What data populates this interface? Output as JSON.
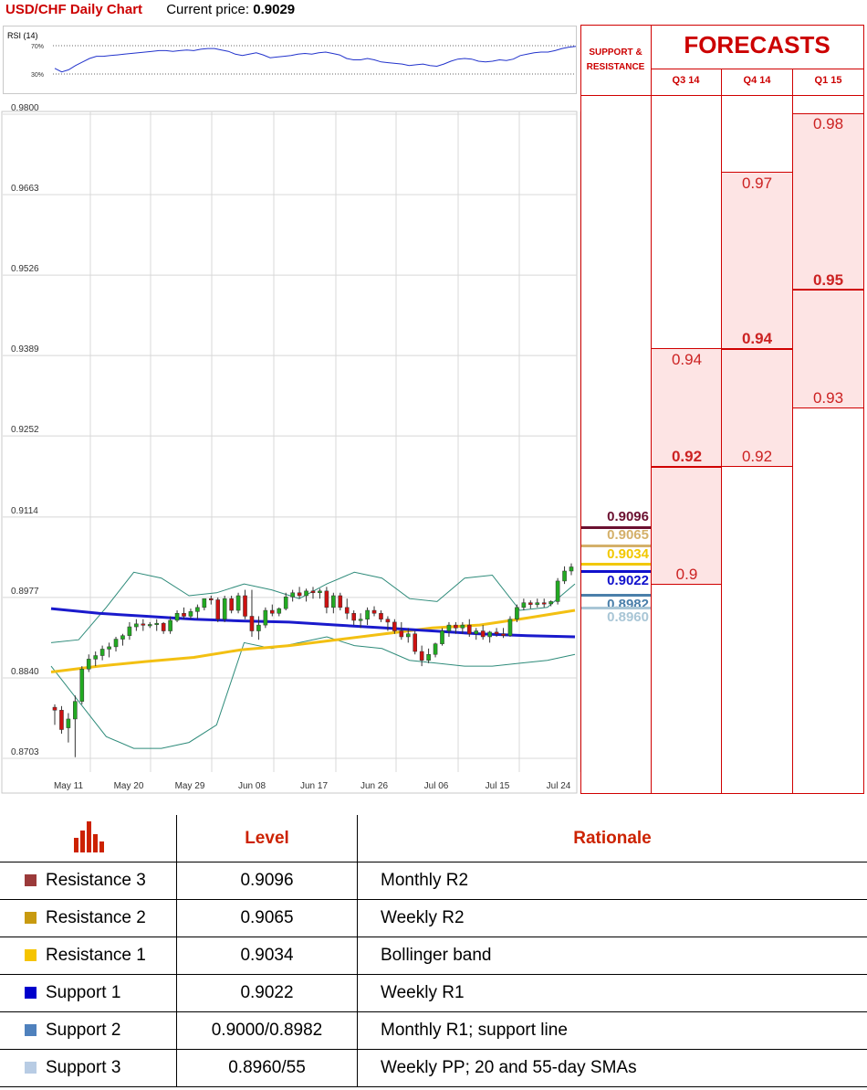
{
  "header": {
    "title": "USD/CHF Daily Chart",
    "price_label": "Current price:",
    "price_value": "0.9029"
  },
  "rsi": {
    "label": "RSI (14)",
    "tick_70": "70%",
    "tick_30": "30%",
    "values": [
      38,
      33,
      36,
      42,
      47,
      52,
      55,
      55,
      56,
      57,
      58,
      59,
      60,
      61,
      62,
      63,
      63,
      62,
      63,
      64,
      63,
      65,
      66,
      66,
      64,
      62,
      58,
      56,
      58,
      60,
      57,
      53,
      54,
      55,
      56,
      58,
      59,
      58,
      60,
      61,
      59,
      57,
      52,
      50,
      50,
      52,
      50,
      47,
      46,
      45,
      44,
      42,
      43,
      44,
      42,
      41,
      44,
      48,
      51,
      52,
      51,
      48,
      47,
      48,
      50,
      49,
      51,
      56,
      58,
      60,
      61,
      61,
      63,
      66,
      68,
      69
    ]
  },
  "chart_data": {
    "type": "candlestick",
    "title": "USD/CHF Daily Chart",
    "y_ticks": [
      "0.9800",
      "0.9663",
      "0.9526",
      "0.9389",
      "0.9252",
      "0.9114",
      "0.8977",
      "0.8840",
      "0.8703"
    ],
    "ylim": [
      0.8703,
      0.98
    ],
    "x_ticks": [
      "May 11",
      "May 20",
      "May 29",
      "Jun 08",
      "Jun 17",
      "Jun 26",
      "Jul 06",
      "Jul 15",
      "Jul 24"
    ],
    "candles": [
      [
        0.879,
        0.8795,
        0.876,
        0.8785
      ],
      [
        0.8785,
        0.8792,
        0.8745,
        0.8752
      ],
      [
        0.8755,
        0.878,
        0.873,
        0.877
      ],
      [
        0.877,
        0.881,
        0.8705,
        0.88
      ],
      [
        0.88,
        0.886,
        0.8795,
        0.8855
      ],
      [
        0.8855,
        0.888,
        0.885,
        0.8872
      ],
      [
        0.8872,
        0.8885,
        0.886,
        0.8878
      ],
      [
        0.8878,
        0.8895,
        0.887,
        0.8889
      ],
      [
        0.8889,
        0.89,
        0.8875,
        0.8893
      ],
      [
        0.8893,
        0.891,
        0.8885,
        0.8906
      ],
      [
        0.8906,
        0.8915,
        0.8895,
        0.8912
      ],
      [
        0.8912,
        0.8935,
        0.8905,
        0.8927
      ],
      [
        0.8927,
        0.894,
        0.892,
        0.8932
      ],
      [
        0.8932,
        0.894,
        0.892,
        0.893
      ],
      [
        0.893,
        0.8935,
        0.8925,
        0.8931
      ],
      [
        0.8931,
        0.894,
        0.892,
        0.8933
      ],
      [
        0.8933,
        0.8935,
        0.8915,
        0.892
      ],
      [
        0.892,
        0.8945,
        0.8915,
        0.8938
      ],
      [
        0.8938,
        0.8955,
        0.8935,
        0.895
      ],
      [
        0.895,
        0.896,
        0.894,
        0.8945
      ],
      [
        0.8945,
        0.8958,
        0.894,
        0.8953
      ],
      [
        0.8953,
        0.8965,
        0.894,
        0.896
      ],
      [
        0.896,
        0.897,
        0.8955,
        0.8975
      ],
      [
        0.8975,
        0.898,
        0.8965,
        0.8973
      ],
      [
        0.8973,
        0.8977,
        0.8935,
        0.894
      ],
      [
        0.894,
        0.898,
        0.8935,
        0.8975
      ],
      [
        0.8975,
        0.898,
        0.895,
        0.8955
      ],
      [
        0.8955,
        0.8985,
        0.895,
        0.898
      ],
      [
        0.898,
        0.899,
        0.894,
        0.8945
      ],
      [
        0.8945,
        0.899,
        0.891,
        0.892
      ],
      [
        0.892,
        0.8945,
        0.8905,
        0.893
      ],
      [
        0.893,
        0.896,
        0.8925,
        0.8955
      ],
      [
        0.8955,
        0.8965,
        0.8945,
        0.895
      ],
      [
        0.895,
        0.896,
        0.8945,
        0.8958
      ],
      [
        0.8958,
        0.8985,
        0.8955,
        0.8978
      ],
      [
        0.8978,
        0.899,
        0.897,
        0.8985
      ],
      [
        0.8985,
        0.8995,
        0.8975,
        0.898
      ],
      [
        0.898,
        0.8992,
        0.897,
        0.8988
      ],
      [
        0.8988,
        0.8995,
        0.8975,
        0.8985
      ],
      [
        0.8985,
        0.8992,
        0.8975,
        0.8988
      ],
      [
        0.8988,
        0.8995,
        0.895,
        0.896
      ],
      [
        0.896,
        0.8985,
        0.895,
        0.898
      ],
      [
        0.898,
        0.8985,
        0.8955,
        0.896
      ],
      [
        0.896,
        0.8975,
        0.894,
        0.895
      ],
      [
        0.895,
        0.8955,
        0.893,
        0.8938
      ],
      [
        0.8938,
        0.895,
        0.8925,
        0.894
      ],
      [
        0.894,
        0.896,
        0.893,
        0.8955
      ],
      [
        0.8955,
        0.8962,
        0.8945,
        0.895
      ],
      [
        0.895,
        0.8955,
        0.8935,
        0.894
      ],
      [
        0.894,
        0.8945,
        0.892,
        0.8935
      ],
      [
        0.8935,
        0.894,
        0.8915,
        0.892
      ],
      [
        0.892,
        0.8935,
        0.8905,
        0.891
      ],
      [
        0.891,
        0.8925,
        0.89,
        0.8915
      ],
      [
        0.8915,
        0.892,
        0.888,
        0.8885
      ],
      [
        0.8885,
        0.8895,
        0.886,
        0.887
      ],
      [
        0.887,
        0.889,
        0.8865,
        0.888
      ],
      [
        0.888,
        0.89,
        0.8875,
        0.8898
      ],
      [
        0.8898,
        0.8925,
        0.8895,
        0.892
      ],
      [
        0.892,
        0.8935,
        0.891,
        0.893
      ],
      [
        0.893,
        0.8935,
        0.8915,
        0.8925
      ],
      [
        0.8925,
        0.8935,
        0.8915,
        0.893
      ],
      [
        0.893,
        0.894,
        0.891,
        0.8915
      ],
      [
        0.8915,
        0.8925,
        0.8905,
        0.892
      ],
      [
        0.892,
        0.893,
        0.8905,
        0.891
      ],
      [
        0.891,
        0.892,
        0.89,
        0.8918
      ],
      [
        0.8918,
        0.8925,
        0.891,
        0.8915
      ],
      [
        0.8915,
        0.8925,
        0.8908,
        0.8912
      ],
      [
        0.8912,
        0.8945,
        0.891,
        0.894
      ],
      [
        0.894,
        0.8965,
        0.8935,
        0.896
      ],
      [
        0.896,
        0.8975,
        0.8955,
        0.8968
      ],
      [
        0.8968,
        0.8972,
        0.8958,
        0.8965
      ],
      [
        0.8965,
        0.8975,
        0.896,
        0.8968
      ],
      [
        0.8968,
        0.8975,
        0.896,
        0.8966
      ],
      [
        0.8966,
        0.8972,
        0.8962,
        0.897
      ],
      [
        0.897,
        0.901,
        0.8965,
        0.9005
      ],
      [
        0.9005,
        0.903,
        0.9,
        0.9022
      ],
      [
        0.9022,
        0.9035,
        0.9015,
        0.9029
      ]
    ],
    "sma_blue": [
      0.8958,
      0.895,
      0.8945,
      0.894,
      0.8937,
      0.8935,
      0.893,
      0.8925,
      0.892,
      0.8915,
      0.8912,
      0.891
    ],
    "sma_yellow": [
      0.885,
      0.886,
      0.8868,
      0.8875,
      0.8888,
      0.8895,
      0.8905,
      0.8915,
      0.8925,
      0.893,
      0.8942,
      0.8955
    ],
    "bb_upper": [
      0.89,
      0.8905,
      0.896,
      0.902,
      0.901,
      0.898,
      0.8985,
      0.9,
      0.899,
      0.8975,
      0.9,
      0.902,
      0.901,
      0.8975,
      0.897,
      0.901,
      0.9015,
      0.8955,
      0.896,
      0.9
    ],
    "bb_lower": [
      0.886,
      0.88,
      0.874,
      0.872,
      0.872,
      0.873,
      0.876,
      0.89,
      0.889,
      0.89,
      0.891,
      0.8895,
      0.889,
      0.887,
      0.8865,
      0.886,
      0.886,
      0.8865,
      0.887,
      0.888
    ]
  },
  "support_resistance": {
    "header": "SUPPORT & RESISTANCE",
    "levels": [
      {
        "label": "0.9096",
        "value": 0.9096,
        "color": "#6b1030"
      },
      {
        "label": "0.9065",
        "value": 0.9065,
        "color": "#d4b06a"
      },
      {
        "label": "0.9034",
        "value": 0.9034,
        "color": "#f2c800"
      },
      {
        "label": "0.9022",
        "value": 0.9022,
        "color": "#1010cc"
      },
      {
        "label": "0.8982",
        "value": 0.8982,
        "color": "#4a7faa"
      },
      {
        "label": "0.8960",
        "value": 0.896,
        "color": "#a9c6d6"
      }
    ]
  },
  "forecasts": {
    "header": "FORECASTS",
    "columns": [
      {
        "quarter": "Q3 14",
        "high": "0.94",
        "mid": "0.92",
        "low": "0.9"
      },
      {
        "quarter": "Q4 14",
        "high": "0.97",
        "mid": "0.94",
        "low": "0.92"
      },
      {
        "quarter": "Q1 15",
        "high": "0.98",
        "mid": "0.95",
        "low": "0.93"
      }
    ]
  },
  "table": {
    "header_level": "Level",
    "header_rationale": "Rationale",
    "rows": [
      {
        "name": "Resistance 3",
        "level": "0.9096",
        "rationale": "Monthly R2",
        "color": "#9b3a3a"
      },
      {
        "name": "Resistance 2",
        "level": "0.9065",
        "rationale": "Weekly R2",
        "color": "#c89a10"
      },
      {
        "name": "Resistance 1",
        "level": "0.9034",
        "rationale": "Bollinger band",
        "color": "#f5c400"
      },
      {
        "name": "Support 1",
        "level": "0.9022",
        "rationale": "Weekly R1",
        "color": "#0000cc"
      },
      {
        "name": "Support 2",
        "level": "0.9000/0.8982",
        "rationale": "Monthly R1; support line",
        "color": "#4f81bd"
      },
      {
        "name": "Support 3",
        "level": "0.8960/55",
        "rationale": "Weekly PP; 20 and 55-day SMAs",
        "color": "#b8cce4"
      }
    ]
  }
}
